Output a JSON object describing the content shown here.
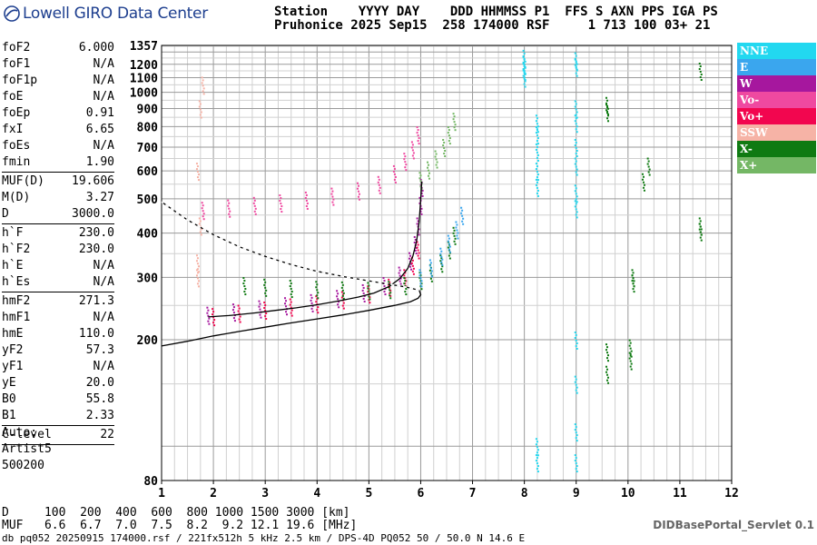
{
  "app": {
    "logo_text": "Lowell GIRO Data Center",
    "credit": "DIDBasePortal_Servlet 0.1"
  },
  "header": {
    "line1": "Station    YYYY DAY    DDD HHMMSS P1  FFS S AXN PPS IGA PS",
    "line2": "Pruhonice 2025 Sep15  258 174000 RSF     1 713 100 03+ 21"
  },
  "params": {
    "group1": [
      {
        "name": "foF2",
        "value": "6.000"
      },
      {
        "name": "foF1",
        "value": "N/A"
      },
      {
        "name": "foF1p",
        "value": "N/A"
      },
      {
        "name": "foE",
        "value": "N/A"
      },
      {
        "name": "foEp",
        "value": "0.91"
      },
      {
        "name": "fxI",
        "value": "6.65"
      },
      {
        "name": "foEs",
        "value": "N/A"
      },
      {
        "name": "fmin",
        "value": "1.90"
      }
    ],
    "group2": [
      {
        "name": "MUF(D)",
        "value": "19.606"
      },
      {
        "name": "M(D)",
        "value": "3.27"
      },
      {
        "name": "D",
        "value": "3000.0"
      }
    ],
    "group3": [
      {
        "name": "h`F",
        "value": "230.0"
      },
      {
        "name": "h`F2",
        "value": "230.0"
      },
      {
        "name": "h`E",
        "value": "N/A"
      },
      {
        "name": "h`Es",
        "value": "N/A"
      }
    ],
    "group4": [
      {
        "name": "hmF2",
        "value": "271.3"
      },
      {
        "name": "hmF1",
        "value": "N/A"
      },
      {
        "name": "hmE",
        "value": "110.0"
      },
      {
        "name": "yF2",
        "value": "57.3"
      },
      {
        "name": "yF1",
        "value": "N/A"
      },
      {
        "name": "yE",
        "value": "20.0"
      },
      {
        "name": "B0",
        "value": "55.8"
      },
      {
        "name": "B1",
        "value": "2.33"
      }
    ],
    "group5": [
      {
        "name": "C-level",
        "value": "22"
      }
    ]
  },
  "auto": {
    "label": "Auto:",
    "program": "Artist5",
    "version": "500200"
  },
  "muf_table": {
    "row_d": "D     100  200  400  600  800 1000 1500 3000 [km]",
    "row_muf": "MUF   6.6  6.7  7.0  7.5  8.2  9.2 12.1 19.6 [MHz]"
  },
  "footer": "db pq052 20250915 174000.rsf / 221fx512h 5 kHz 2.5 km / DPS-4D PQ052 50 / 50.0 N 14.6 E",
  "legend": [
    {
      "label": "NNE",
      "color": "#22d8f0"
    },
    {
      "label": "E",
      "color": "#3aa6ee"
    },
    {
      "label": "W",
      "color": "#a6179e"
    },
    {
      "label": "Vo-",
      "color": "#ef49a0"
    },
    {
      "label": "Vo+",
      "color": "#f2064f"
    },
    {
      "label": "SSW",
      "color": "#f6b3a6"
    },
    {
      "label": "X-",
      "color": "#0f7a12"
    },
    {
      "label": "X+",
      "color": "#74b765"
    }
  ],
  "chart_data": {
    "type": "scatter",
    "xlim": [
      1,
      12
    ],
    "ylim": [
      80,
      1357
    ],
    "x_ticks": [
      "1",
      "2",
      "3",
      "4",
      "5",
      "6",
      "7",
      "8",
      "9",
      "10",
      "11",
      "12"
    ],
    "y_ticks": [
      "80",
      "200",
      "300",
      "400",
      "500",
      "600",
      "700",
      "800",
      "900",
      "1000",
      "1100",
      "1200",
      "1357"
    ],
    "grid": true,
    "y_scale": "log",
    "traces": [
      {
        "name": "",
        "color": "#000000",
        "style": "solid",
        "points": [
          [
            1.9,
            232
          ],
          [
            2.3,
            234
          ],
          [
            2.8,
            238
          ],
          [
            3.2,
            242
          ],
          [
            3.6,
            246
          ],
          [
            4.0,
            251
          ],
          [
            4.4,
            257
          ],
          [
            4.8,
            264
          ],
          [
            5.1,
            271
          ],
          [
            5.4,
            283
          ],
          [
            5.6,
            298
          ],
          [
            5.75,
            318
          ],
          [
            5.85,
            345
          ],
          [
            5.92,
            380
          ],
          [
            5.97,
            430
          ],
          [
            6.0,
            500
          ],
          [
            6.02,
            560
          ]
        ]
      },
      {
        "name": "",
        "color": "#000000",
        "style": "solid",
        "points": [
          [
            1.0,
            192
          ],
          [
            1.5,
            198
          ],
          [
            2.0,
            205
          ],
          [
            2.5,
            211
          ],
          [
            3.0,
            217
          ],
          [
            3.5,
            223
          ],
          [
            4.0,
            229
          ],
          [
            4.5,
            235
          ],
          [
            5.0,
            242
          ],
          [
            5.5,
            250
          ],
          [
            5.8,
            256
          ],
          [
            5.95,
            262
          ],
          [
            6.0,
            268
          ],
          [
            5.97,
            276
          ],
          [
            5.7,
            282
          ],
          [
            5.2,
            290
          ],
          [
            4.6,
            300
          ],
          [
            4.0,
            312
          ],
          [
            3.5,
            326
          ],
          [
            3.0,
            344
          ],
          [
            2.5,
            366
          ],
          [
            2.0,
            396
          ],
          [
            1.5,
            436
          ],
          [
            1.0,
            490
          ]
        ]
      }
    ],
    "echo_clusters": [
      {
        "label": "W",
        "color": "#a6179e",
        "points": [
          [
            1.9,
            235
          ],
          [
            2.4,
            240
          ],
          [
            2.9,
            245
          ],
          [
            3.4,
            250
          ],
          [
            3.9,
            255
          ],
          [
            4.4,
            262
          ],
          [
            4.9,
            272
          ],
          [
            5.3,
            285
          ],
          [
            5.6,
            305
          ],
          [
            5.8,
            335
          ],
          [
            5.9,
            372
          ],
          [
            5.95,
            420
          ],
          [
            6.0,
            480
          ],
          [
            6.02,
            540
          ]
        ]
      },
      {
        "label": "Vo-",
        "color": "#ef49a0",
        "points": [
          [
            1.8,
            465
          ],
          [
            2.3,
            472
          ],
          [
            2.8,
            480
          ],
          [
            3.3,
            488
          ],
          [
            3.8,
            497
          ],
          [
            4.3,
            510
          ],
          [
            4.8,
            528
          ],
          [
            5.2,
            550
          ],
          [
            5.5,
            590
          ],
          [
            5.7,
            640
          ],
          [
            5.85,
            690
          ],
          [
            5.95,
            760
          ]
        ]
      },
      {
        "label": "Vo+",
        "color": "#f2064f",
        "points": [
          [
            2.0,
            233
          ],
          [
            2.5,
            238
          ],
          [
            3.0,
            243
          ],
          [
            3.5,
            248
          ],
          [
            4.0,
            253
          ],
          [
            4.5,
            260
          ],
          [
            5.0,
            270
          ],
          [
            5.4,
            282
          ],
          [
            5.7,
            300
          ],
          [
            5.85,
            325
          ],
          [
            5.95,
            360
          ]
        ]
      },
      {
        "label": "X-",
        "color": "#0f7a12",
        "points": [
          [
            2.6,
            285
          ],
          [
            3.0,
            282
          ],
          [
            3.5,
            280
          ],
          [
            4.0,
            278
          ],
          [
            4.5,
            277
          ],
          [
            5.0,
            276
          ],
          [
            5.4,
            278
          ],
          [
            5.7,
            285
          ],
          [
            6.0,
            295
          ],
          [
            6.2,
            310
          ],
          [
            6.4,
            330
          ],
          [
            6.55,
            360
          ],
          [
            6.65,
            395
          ]
        ]
      },
      {
        "label": "X+",
        "color": "#74b765",
        "points": [
          [
            6.0,
            565
          ],
          [
            6.15,
            605
          ],
          [
            6.3,
            650
          ],
          [
            6.45,
            700
          ],
          [
            6.55,
            760
          ],
          [
            6.65,
            830
          ]
        ]
      },
      {
        "label": "E",
        "color": "#3aa6ee",
        "points": [
          [
            6.0,
            300
          ],
          [
            6.2,
            320
          ],
          [
            6.4,
            345
          ],
          [
            6.55,
            375
          ],
          [
            6.7,
            410
          ],
          [
            6.8,
            450
          ]
        ]
      },
      {
        "label": "NNE",
        "color": "#22d8f0",
        "points": [
          [
            8.0,
            1100
          ],
          [
            8.0,
            1150
          ],
          [
            8.0,
            1200
          ],
          [
            8.0,
            1250
          ],
          [
            8.25,
            540
          ],
          [
            8.25,
            600
          ],
          [
            8.25,
            680
          ],
          [
            8.25,
            760
          ],
          [
            8.25,
            820
          ],
          [
            9.0,
            1230
          ],
          [
            9.0,
            1180
          ],
          [
            9.0,
            900
          ],
          [
            9.0,
            820
          ],
          [
            9.0,
            700
          ],
          [
            9.0,
            620
          ],
          [
            9.0,
            520
          ],
          [
            9.0,
            470
          ],
          [
            9.0,
            200
          ],
          [
            9.0,
            150
          ],
          [
            9.0,
            110
          ],
          [
            9.0,
            90
          ],
          [
            8.25,
            100
          ],
          [
            8.25,
            90
          ]
        ]
      },
      {
        "label": "X-",
        "color": "#0f7a12",
        "points": [
          [
            9.6,
            880
          ],
          [
            9.6,
            920
          ],
          [
            10.1,
            290
          ],
          [
            10.1,
            300
          ],
          [
            10.3,
            560
          ],
          [
            10.4,
            620
          ],
          [
            11.4,
            405
          ],
          [
            11.4,
            420
          ],
          [
            11.4,
            1150
          ],
          [
            9.6,
            185
          ],
          [
            9.6,
            160
          ],
          [
            10.05,
            190
          ],
          [
            10.05,
            175
          ]
        ]
      },
      {
        "label": "SSW",
        "color": "#f6b3a6",
        "points": [
          [
            1.7,
            300
          ],
          [
            1.7,
            330
          ],
          [
            1.75,
            420
          ],
          [
            1.7,
            600
          ],
          [
            1.75,
            900
          ],
          [
            1.8,
            1050
          ]
        ]
      }
    ]
  }
}
